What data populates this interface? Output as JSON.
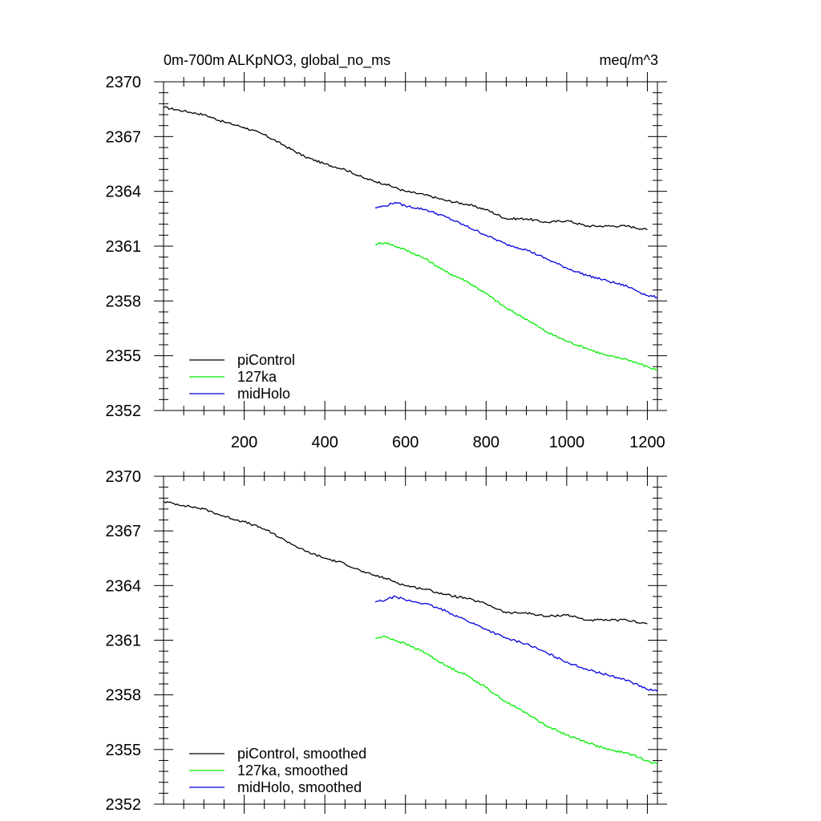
{
  "header": {
    "title_left": "0m-700m ALKpNO3, global_no_ms",
    "title_right": "meq/m^3"
  },
  "chart_data": [
    {
      "type": "line",
      "title": "0m-700m ALKpNO3, global_no_ms",
      "units": "meq/m^3",
      "xlim": [
        0,
        1225
      ],
      "ylim": [
        2352,
        2370
      ],
      "yticks": [
        2352,
        2355,
        2358,
        2361,
        2364,
        2367,
        2370
      ],
      "xticks": [
        200,
        400,
        600,
        800,
        1000,
        1200
      ],
      "xtick_labels_shown": true,
      "legend_placement": "bottom-left",
      "grid": false,
      "series": [
        {
          "name": "piControl",
          "color": "#000000",
          "x": [
            1,
            50,
            100,
            150,
            200,
            250,
            300,
            350,
            400,
            450,
            500,
            550,
            600,
            650,
            700,
            750,
            800,
            850,
            900,
            950,
            1000,
            1050,
            1100,
            1150,
            1200
          ],
          "y": [
            2368.6,
            2368.4,
            2368.2,
            2367.8,
            2367.5,
            2367.1,
            2366.5,
            2365.9,
            2365.5,
            2365.2,
            2364.7,
            2364.4,
            2364.0,
            2363.8,
            2363.5,
            2363.3,
            2363.0,
            2362.5,
            2362.5,
            2362.3,
            2362.4,
            2362.1,
            2362.1,
            2362.1,
            2361.9
          ]
        },
        {
          "name": "127ka",
          "color": "#00ee00",
          "x": [
            525,
            550,
            600,
            650,
            700,
            750,
            800,
            850,
            900,
            950,
            1000,
            1050,
            1100,
            1150,
            1200,
            1225
          ],
          "y": [
            2361.1,
            2361.2,
            2360.8,
            2360.3,
            2359.6,
            2359.1,
            2358.4,
            2357.6,
            2357.0,
            2356.3,
            2355.8,
            2355.4,
            2355.0,
            2354.8,
            2354.4,
            2354.2
          ]
        },
        {
          "name": "midHolo",
          "color": "#0000dd",
          "x": [
            525,
            550,
            575,
            600,
            650,
            700,
            750,
            800,
            850,
            900,
            950,
            1000,
            1050,
            1100,
            1150,
            1200,
            1225
          ],
          "y": [
            2363.1,
            2363.2,
            2363.4,
            2363.2,
            2363.0,
            2362.6,
            2362.1,
            2361.6,
            2361.1,
            2360.8,
            2360.3,
            2359.8,
            2359.4,
            2359.1,
            2358.8,
            2358.3,
            2358.2
          ]
        }
      ]
    },
    {
      "type": "line",
      "xlim": [
        0,
        1225
      ],
      "ylim": [
        2352,
        2370
      ],
      "yticks": [
        2352,
        2355,
        2358,
        2361,
        2364,
        2367,
        2370
      ],
      "xticks": [
        200,
        400,
        600,
        800,
        1000,
        1200
      ],
      "xtick_labels_shown": false,
      "legend_placement": "bottom-left",
      "grid": false,
      "series": [
        {
          "name": "piControl, smoothed",
          "color": "#000000",
          "x": [
            1,
            50,
            100,
            150,
            200,
            250,
            300,
            350,
            400,
            450,
            500,
            550,
            600,
            650,
            700,
            750,
            800,
            850,
            900,
            950,
            1000,
            1050,
            1100,
            1150,
            1200
          ],
          "y": [
            2368.6,
            2368.4,
            2368.2,
            2367.8,
            2367.5,
            2367.1,
            2366.5,
            2365.9,
            2365.5,
            2365.2,
            2364.7,
            2364.4,
            2364.0,
            2363.8,
            2363.5,
            2363.3,
            2363.0,
            2362.5,
            2362.5,
            2362.3,
            2362.4,
            2362.1,
            2362.1,
            2362.1,
            2361.9
          ]
        },
        {
          "name": "127ka, smoothed",
          "color": "#00ee00",
          "x": [
            525,
            550,
            600,
            650,
            700,
            750,
            800,
            850,
            900,
            950,
            1000,
            1050,
            1100,
            1150,
            1200,
            1225
          ],
          "y": [
            2361.1,
            2361.2,
            2360.8,
            2360.3,
            2359.6,
            2359.1,
            2358.4,
            2357.6,
            2357.0,
            2356.3,
            2355.8,
            2355.4,
            2355.0,
            2354.8,
            2354.4,
            2354.2
          ]
        },
        {
          "name": "midHolo, smoothed",
          "color": "#0000dd",
          "x": [
            525,
            550,
            575,
            600,
            650,
            700,
            750,
            800,
            850,
            900,
            950,
            1000,
            1050,
            1100,
            1150,
            1200,
            1225
          ],
          "y": [
            2363.1,
            2363.2,
            2363.4,
            2363.2,
            2363.0,
            2362.6,
            2362.1,
            2361.6,
            2361.1,
            2360.8,
            2360.3,
            2359.8,
            2359.4,
            2359.1,
            2358.8,
            2358.3,
            2358.2
          ]
        }
      ]
    }
  ]
}
